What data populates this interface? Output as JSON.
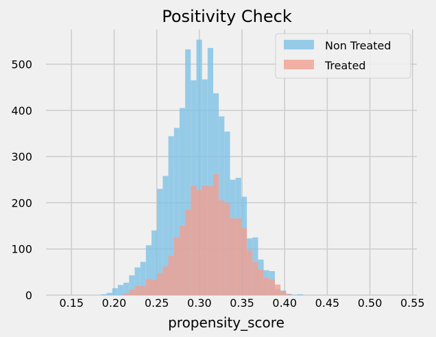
{
  "chart_data": {
    "type": "bar",
    "title": "Positivity Check",
    "xlabel": "propensity_score",
    "ylabel": "",
    "xlim": [
      0.12,
      0.555
    ],
    "ylim": [
      0,
      575
    ],
    "xticks": [
      0.15,
      0.2,
      0.25,
      0.3,
      0.35,
      0.4,
      0.45,
      0.5,
      0.55
    ],
    "xtick_labels": [
      "0.15",
      "0.20",
      "0.25",
      "0.30",
      "0.35",
      "0.40",
      "0.45",
      "0.50",
      "0.55"
    ],
    "yticks": [
      0,
      100,
      200,
      300,
      400,
      500
    ],
    "ytick_labels": [
      "0",
      "100",
      "200",
      "300",
      "400",
      "500"
    ],
    "grid": true,
    "legend_position": "top-right",
    "bin_width": 0.00658,
    "series": [
      {
        "name": "Non Treated",
        "color": "#80c2e6",
        "bin_start": 0.1846,
        "values": [
          2,
          5,
          15,
          22,
          27,
          43,
          60,
          72,
          108,
          140,
          230,
          258,
          344,
          362,
          405,
          532,
          465,
          553,
          467,
          535,
          437,
          387,
          354,
          250,
          254,
          213,
          123,
          125,
          77,
          54,
          52,
          13,
          10,
          3,
          1,
          2
        ]
      },
      {
        "name": "Treated",
        "color": "#f2a091",
        "bin_start": 0.2109,
        "values": [
          3,
          12,
          20,
          20,
          35,
          33,
          48,
          62,
          85,
          125,
          150,
          185,
          237,
          228,
          237,
          236,
          262,
          205,
          200,
          166,
          166,
          145,
          97,
          72,
          55,
          38,
          34,
          23,
          8,
          2
        ]
      }
    ]
  }
}
